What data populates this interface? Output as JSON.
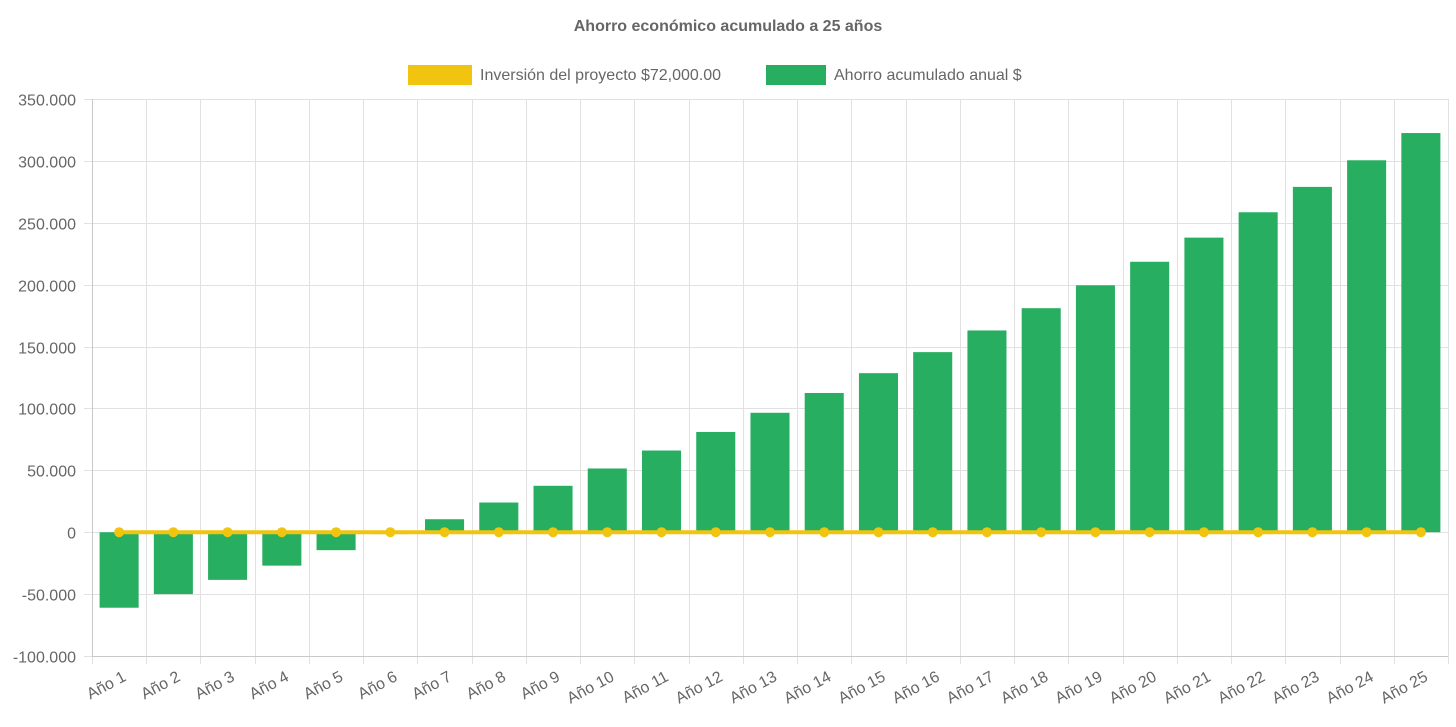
{
  "chart_data": {
    "type": "bar",
    "title": "Ahorro económico acumulado a 25 años",
    "legend_position": "top-center",
    "grid": true,
    "ylim": [
      -100000,
      350000
    ],
    "y_ticks": [
      350000,
      300000,
      250000,
      200000,
      150000,
      100000,
      50000,
      0,
      -50000,
      -100000
    ],
    "y_tick_labels": [
      "350.000",
      "300.000",
      "250.000",
      "200.000",
      "150.000",
      "100.000",
      "50.000",
      "0",
      "-50.000",
      "-100.000"
    ],
    "categories": [
      "Año 1",
      "Año 2",
      "Año 3",
      "Año 4",
      "Año 5",
      "Año 6",
      "Año 7",
      "Año 8",
      "Año 9",
      "Año 10",
      "Año 11",
      "Año 12",
      "Año 13",
      "Año 14",
      "Año 15",
      "Año 16",
      "Año 17",
      "Año 18",
      "Año 19",
      "Año 20",
      "Año 21",
      "Año 22",
      "Año 23",
      "Año 24",
      "Año 25"
    ],
    "series": [
      {
        "name": "Inversión del proyecto $72,000.00",
        "type": "line",
        "color": "#f1c40f",
        "values": [
          0,
          0,
          0,
          0,
          0,
          0,
          0,
          0,
          0,
          0,
          0,
          0,
          0,
          0,
          0,
          0,
          0,
          0,
          0,
          0,
          0,
          0,
          0,
          0,
          0
        ]
      },
      {
        "name": "Ahorro acumulado anual $",
        "type": "bar",
        "color": "#27ae60",
        "values": [
          -61000,
          -50000,
          -38500,
          -27000,
          -14500,
          -1500,
          10500,
          24000,
          37500,
          51500,
          66000,
          81000,
          96500,
          112500,
          128500,
          145500,
          163000,
          181000,
          199500,
          218500,
          238000,
          258500,
          279000,
          300500,
          322500
        ]
      }
    ]
  }
}
